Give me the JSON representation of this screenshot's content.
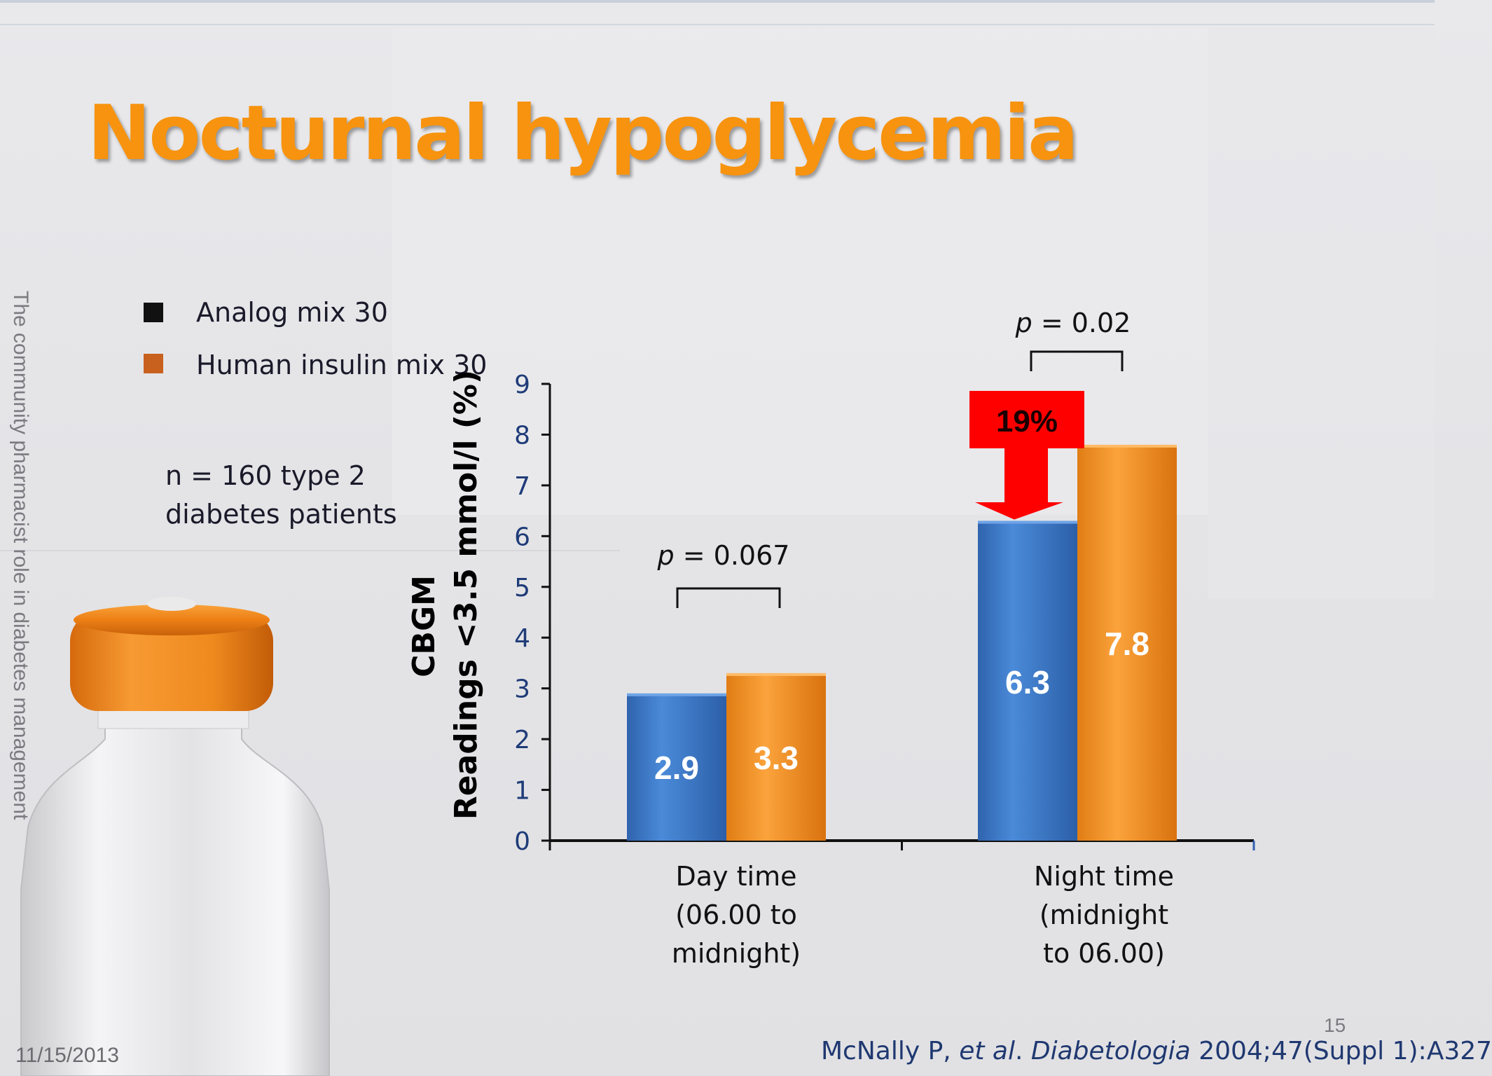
{
  "slide": {
    "title": "Nocturnal hypoglycemia",
    "sidebar_text": "The community pharmacist role in diabetes management",
    "date": "11/15/2013",
    "page_number": "15",
    "note_line1": "n = 160 type 2",
    "note_line2": "diabetes patients",
    "citation": {
      "author": "McNally P, ",
      "etal": "et al",
      "dot": ". ",
      "journal": "Diabetologia",
      "rest": " 2004;47(Suppl 1):A327"
    }
  },
  "legend": [
    {
      "label": "Analog mix 30",
      "color": "#111111"
    },
    {
      "label": "Human insulin mix 30",
      "color": "#c8611e"
    }
  ],
  "colors": {
    "blue_bar": "#3f7fd0",
    "orange_bar": "#f39425",
    "axis_text": "#1f3c78",
    "arrow": "#ff0000"
  },
  "chart_data": {
    "type": "bar",
    "ylabel_line1": "CBGM",
    "ylabel_line2": "Readings <3.5 mmol/l (%)",
    "ylim": [
      0,
      9
    ],
    "yticks": [
      0,
      1,
      2,
      3,
      4,
      5,
      6,
      7,
      8,
      9
    ],
    "categories": [
      [
        "Day time",
        "(06.00 to",
        "midnight)"
      ],
      [
        "Night time",
        "(midnight",
        "to 06.00)"
      ]
    ],
    "series": [
      {
        "name": "Analog mix 30",
        "values": [
          2.9,
          6.3
        ]
      },
      {
        "name": "Human insulin mix 30",
        "values": [
          3.3,
          7.8
        ]
      }
    ],
    "data_labels": [
      [
        "2.9",
        "3.3"
      ],
      [
        "6.3",
        "7.8"
      ]
    ],
    "p_values": [
      {
        "prefix": "p",
        "text": " = 0.067"
      },
      {
        "prefix": "p",
        "text": " = 0.02"
      }
    ],
    "annotation": "19%"
  }
}
